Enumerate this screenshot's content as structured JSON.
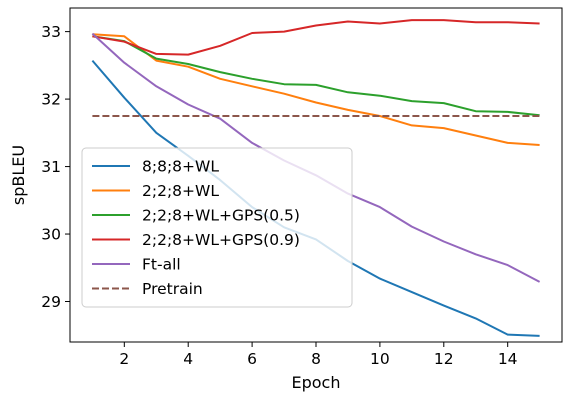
{
  "chart_data": {
    "type": "line",
    "xlabel": "Epoch",
    "ylabel": "spBLEU",
    "xlim": [
      0.3,
      15.7
    ],
    "ylim": [
      28.4,
      33.35
    ],
    "x_ticks": [
      2,
      4,
      6,
      8,
      10,
      12,
      14
    ],
    "y_ticks": [
      29,
      30,
      31,
      32,
      33
    ],
    "legend_position": "lower-left",
    "x": [
      1,
      2,
      3,
      4,
      5,
      6,
      7,
      8,
      9,
      10,
      11,
      12,
      13,
      14,
      15
    ],
    "series": [
      {
        "name": "8;8;8+WL",
        "color": "#1f77b4",
        "dashed": false,
        "values": [
          32.57,
          32.02,
          31.5,
          31.16,
          30.8,
          30.4,
          30.1,
          29.92,
          29.6,
          29.34,
          29.14,
          28.94,
          28.75,
          28.51,
          28.49
        ]
      },
      {
        "name": "2;2;8+WL",
        "color": "#ff7f0e",
        "dashed": false,
        "values": [
          32.96,
          32.93,
          32.57,
          32.48,
          32.3,
          32.19,
          32.08,
          31.95,
          31.84,
          31.75,
          31.61,
          31.57,
          31.46,
          31.35,
          31.32
        ]
      },
      {
        "name": "2;2;8+WL+GPS(0.5)",
        "color": "#2ca02c",
        "dashed": false,
        "values": [
          32.93,
          32.86,
          32.6,
          32.52,
          32.4,
          32.3,
          32.22,
          32.21,
          32.1,
          32.05,
          31.97,
          31.94,
          31.82,
          31.81,
          31.76
        ]
      },
      {
        "name": "2;2;8+WL+GPS(0.9)",
        "color": "#d62728",
        "dashed": false,
        "values": [
          32.93,
          32.85,
          32.67,
          32.66,
          32.79,
          32.98,
          33.0,
          33.09,
          33.15,
          33.12,
          33.17,
          33.17,
          33.14,
          33.14,
          33.12
        ]
      },
      {
        "name": "Ft-all",
        "color": "#9467bd",
        "dashed": false,
        "values": [
          32.97,
          32.54,
          32.19,
          31.92,
          31.71,
          31.35,
          31.09,
          30.87,
          30.6,
          30.4,
          30.11,
          29.89,
          29.7,
          29.54,
          29.29
        ]
      },
      {
        "name": "Pretrain",
        "color": "#8c564b",
        "dashed": true,
        "values": [
          31.75,
          31.75,
          31.75,
          31.75,
          31.75,
          31.75,
          31.75,
          31.75,
          31.75,
          31.75,
          31.75,
          31.75,
          31.75,
          31.75,
          31.75
        ]
      }
    ]
  }
}
